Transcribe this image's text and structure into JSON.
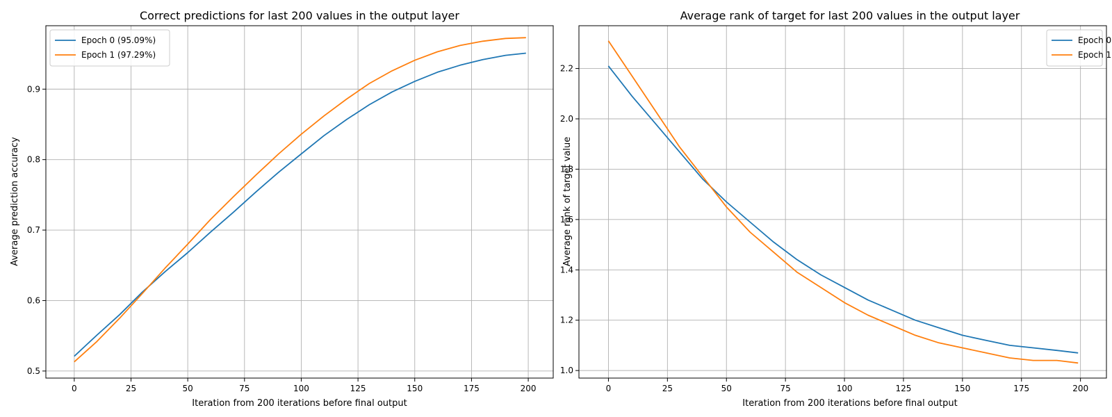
{
  "colors": {
    "series0": "#1f77b4",
    "series1": "#ff7f0e",
    "grid": "#b0b0b0",
    "axis": "#000000"
  },
  "chart_data": [
    {
      "type": "line",
      "title": "Correct predictions for last 200 values in the output layer",
      "xlabel": "Iteration from 200 iterations before final output",
      "ylabel": "Average prediction accuracy",
      "xlim": [
        -12.5,
        211
      ],
      "ylim": [
        0.49,
        0.99
      ],
      "xticks": [
        0,
        25,
        50,
        75,
        100,
        125,
        150,
        175,
        200
      ],
      "yticks": [
        0.5,
        0.6,
        0.7,
        0.8,
        0.9
      ],
      "ytick_labels": [
        "0.5",
        "0.6",
        "0.7",
        "0.8",
        "0.9"
      ],
      "grid": true,
      "legend_position": "top-left",
      "series": [
        {
          "name": "Epoch 0 (95.09%)",
          "x": [
            0,
            10,
            20,
            30,
            40,
            50,
            60,
            70,
            80,
            90,
            100,
            110,
            120,
            130,
            140,
            150,
            160,
            170,
            180,
            190,
            199
          ],
          "y": [
            0.521,
            0.551,
            0.58,
            0.612,
            0.641,
            0.668,
            0.697,
            0.725,
            0.754,
            0.782,
            0.808,
            0.834,
            0.857,
            0.878,
            0.896,
            0.911,
            0.924,
            0.934,
            0.942,
            0.948,
            0.951
          ]
        },
        {
          "name": "Epoch 1 (97.29%)",
          "x": [
            0,
            10,
            20,
            30,
            40,
            50,
            60,
            70,
            80,
            90,
            100,
            110,
            120,
            130,
            140,
            150,
            160,
            170,
            180,
            190,
            199
          ],
          "y": [
            0.513,
            0.542,
            0.575,
            0.61,
            0.646,
            0.68,
            0.715,
            0.747,
            0.778,
            0.808,
            0.836,
            0.862,
            0.886,
            0.908,
            0.926,
            0.941,
            0.953,
            0.962,
            0.968,
            0.972,
            0.973
          ]
        }
      ]
    },
    {
      "type": "line",
      "title": "Average rank of target for last 200 values in the output layer",
      "xlabel": "Iteration from 200 iterations before final output",
      "ylabel": "Average rank of target value",
      "xlim": [
        -12.5,
        211
      ],
      "ylim": [
        0.97,
        2.37
      ],
      "xticks": [
        0,
        25,
        50,
        75,
        100,
        125,
        150,
        175,
        200
      ],
      "yticks": [
        1.0,
        1.2,
        1.4,
        1.6,
        1.8,
        2.0,
        2.2
      ],
      "ytick_labels": [
        "1.0",
        "1.2",
        "1.4",
        "1.6",
        "1.8",
        "2.0",
        "2.2"
      ],
      "grid": true,
      "legend_position": "top-right",
      "series": [
        {
          "name": "Epoch 0",
          "x": [
            0,
            10,
            20,
            30,
            40,
            50,
            60,
            70,
            80,
            90,
            100,
            110,
            120,
            130,
            140,
            150,
            160,
            170,
            180,
            190,
            199
          ],
          "y": [
            2.21,
            2.09,
            1.98,
            1.87,
            1.76,
            1.67,
            1.59,
            1.51,
            1.44,
            1.38,
            1.33,
            1.28,
            1.24,
            1.2,
            1.17,
            1.14,
            1.12,
            1.1,
            1.09,
            1.08,
            1.07
          ]
        },
        {
          "name": "Epoch 1",
          "x": [
            0,
            10,
            20,
            30,
            40,
            50,
            60,
            70,
            80,
            90,
            100,
            110,
            120,
            130,
            140,
            150,
            160,
            170,
            180,
            190,
            199
          ],
          "y": [
            2.31,
            2.17,
            2.03,
            1.89,
            1.77,
            1.65,
            1.55,
            1.47,
            1.39,
            1.33,
            1.27,
            1.22,
            1.18,
            1.14,
            1.11,
            1.09,
            1.07,
            1.05,
            1.04,
            1.04,
            1.03
          ]
        }
      ]
    }
  ]
}
